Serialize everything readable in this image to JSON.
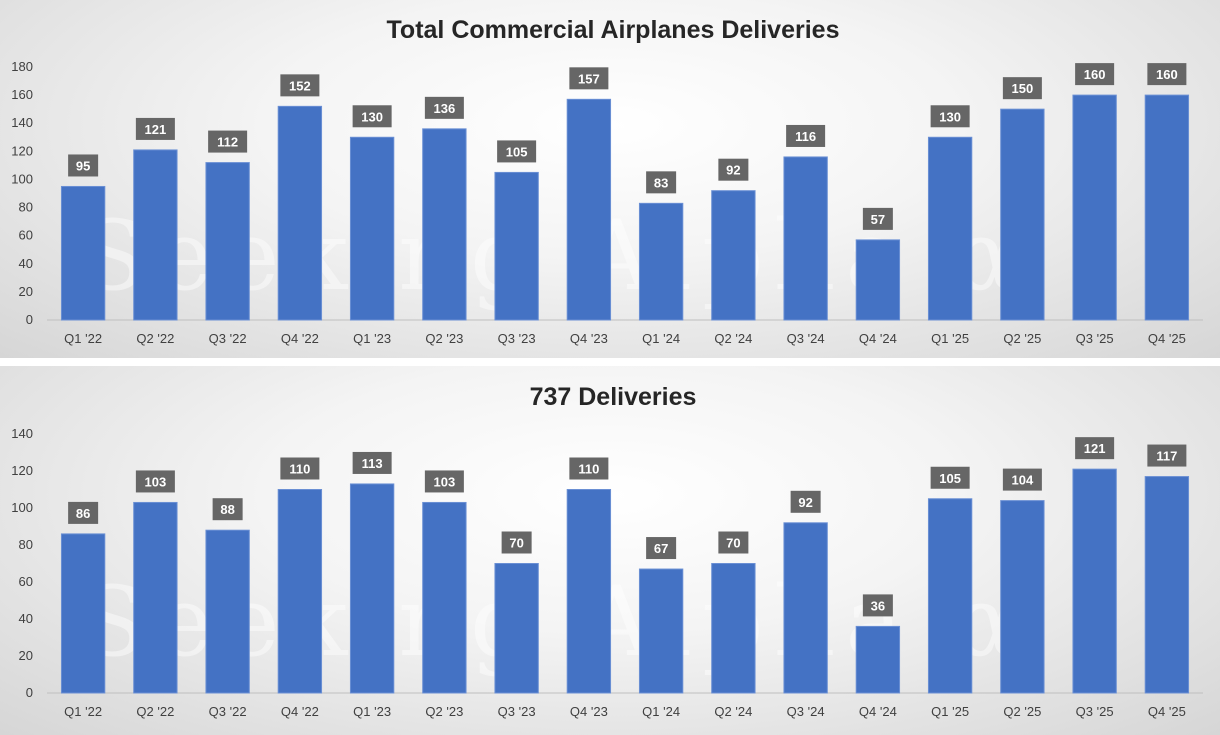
{
  "chart_data": [
    {
      "type": "bar",
      "title": "Total Commercial Airplanes Deliveries",
      "categories": [
        "Q1 '22",
        "Q2 '22",
        "Q3 '22",
        "Q4 '22",
        "Q1 '23",
        "Q2 '23",
        "Q3 '23",
        "Q4 '23",
        "Q1 '24",
        "Q2 '24",
        "Q3 '24",
        "Q4 '24",
        "Q1 '25",
        "Q2 '25",
        "Q3 '25",
        "Q4 '25"
      ],
      "values": [
        95,
        121,
        112,
        152,
        130,
        136,
        105,
        157,
        83,
        92,
        116,
        57,
        130,
        150,
        160,
        160
      ],
      "ylim": [
        0,
        180
      ],
      "yticks": [
        0,
        20,
        40,
        60,
        80,
        100,
        120,
        140,
        160,
        180
      ],
      "xlabel": "",
      "ylabel": "",
      "bar_color": "#4472c4",
      "label_bg": "#666666"
    },
    {
      "type": "bar",
      "title": "737 Deliveries",
      "categories": [
        "Q1 '22",
        "Q2 '22",
        "Q3 '22",
        "Q4 '22",
        "Q1 '23",
        "Q2 '23",
        "Q3 '23",
        "Q4 '23",
        "Q1 '24",
        "Q2 '24",
        "Q3 '24",
        "Q4 '24",
        "Q1 '25",
        "Q2 '25",
        "Q3 '25",
        "Q4 '25"
      ],
      "values": [
        86,
        103,
        88,
        110,
        113,
        103,
        70,
        110,
        67,
        70,
        92,
        36,
        105,
        104,
        121,
        117
      ],
      "ylim": [
        0,
        140
      ],
      "yticks": [
        0,
        20,
        40,
        60,
        80,
        100,
        120,
        140
      ],
      "xlabel": "",
      "ylabel": "",
      "bar_color": "#4472c4",
      "label_bg": "#666666"
    }
  ],
  "watermark": "Seeking Alpha α"
}
